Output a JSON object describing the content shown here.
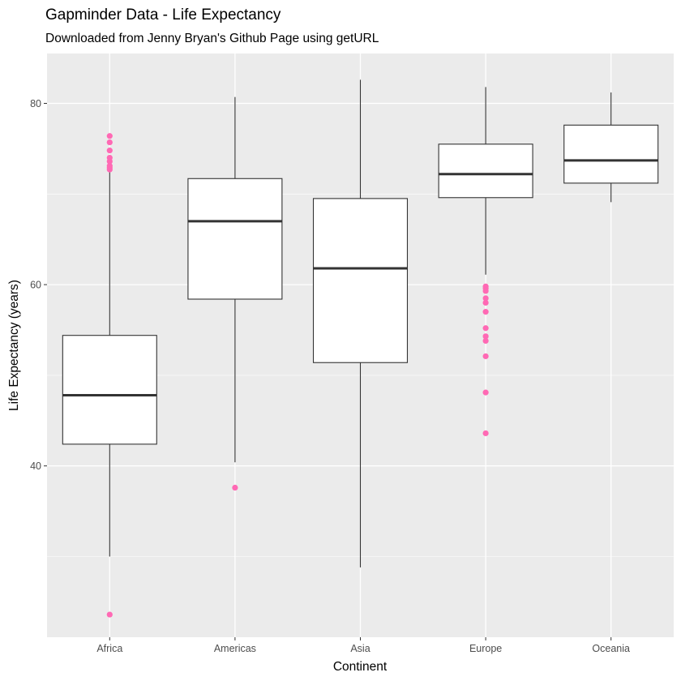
{
  "chart_data": {
    "type": "box",
    "title": "Gapminder Data - Life Expectancy",
    "subtitle": "Downloaded from Jenny Bryan's Github Page using getURL",
    "xlabel": "Continent",
    "ylabel": "Life Expectancy (years)",
    "ylim": [
      21.1,
      85.5
    ],
    "yticks": [
      40,
      60,
      80
    ],
    "grid": true,
    "colors": {
      "panel": "#ebebeb",
      "grid_major": "#ffffff",
      "box_fill": "#ffffff",
      "box_line": "#333333",
      "outlier": "#ff69b4",
      "tick_text": "#4d4d4d"
    },
    "categories": [
      "Africa",
      "Americas",
      "Asia",
      "Europe",
      "Oceania"
    ],
    "boxes": [
      {
        "category": "Africa",
        "whisker_low": 30.0,
        "q1": 42.4,
        "median": 47.8,
        "q3": 54.4,
        "whisker_high": 72.4,
        "outliers": [
          23.6,
          72.7,
          72.9,
          73.1,
          73.6,
          74.0,
          74.8,
          75.7,
          76.4
        ]
      },
      {
        "category": "Americas",
        "whisker_low": 40.4,
        "q1": 58.4,
        "median": 67.0,
        "q3": 71.7,
        "whisker_high": 80.7,
        "outliers": [
          37.6
        ]
      },
      {
        "category": "Asia",
        "whisker_low": 28.8,
        "q1": 51.4,
        "median": 61.8,
        "q3": 69.5,
        "whisker_high": 82.6,
        "outliers": []
      },
      {
        "category": "Europe",
        "whisker_low": 61.1,
        "q1": 69.6,
        "median": 72.2,
        "q3": 75.5,
        "whisker_high": 81.8,
        "outliers": [
          43.6,
          48.1,
          52.1,
          53.8,
          54.3,
          55.2,
          57.0,
          58.0,
          58.5,
          59.3,
          59.6,
          59.8
        ]
      },
      {
        "category": "Oceania",
        "whisker_low": 69.1,
        "q1": 71.2,
        "median": 73.7,
        "q3": 77.6,
        "whisker_high": 81.2,
        "outliers": []
      }
    ]
  }
}
